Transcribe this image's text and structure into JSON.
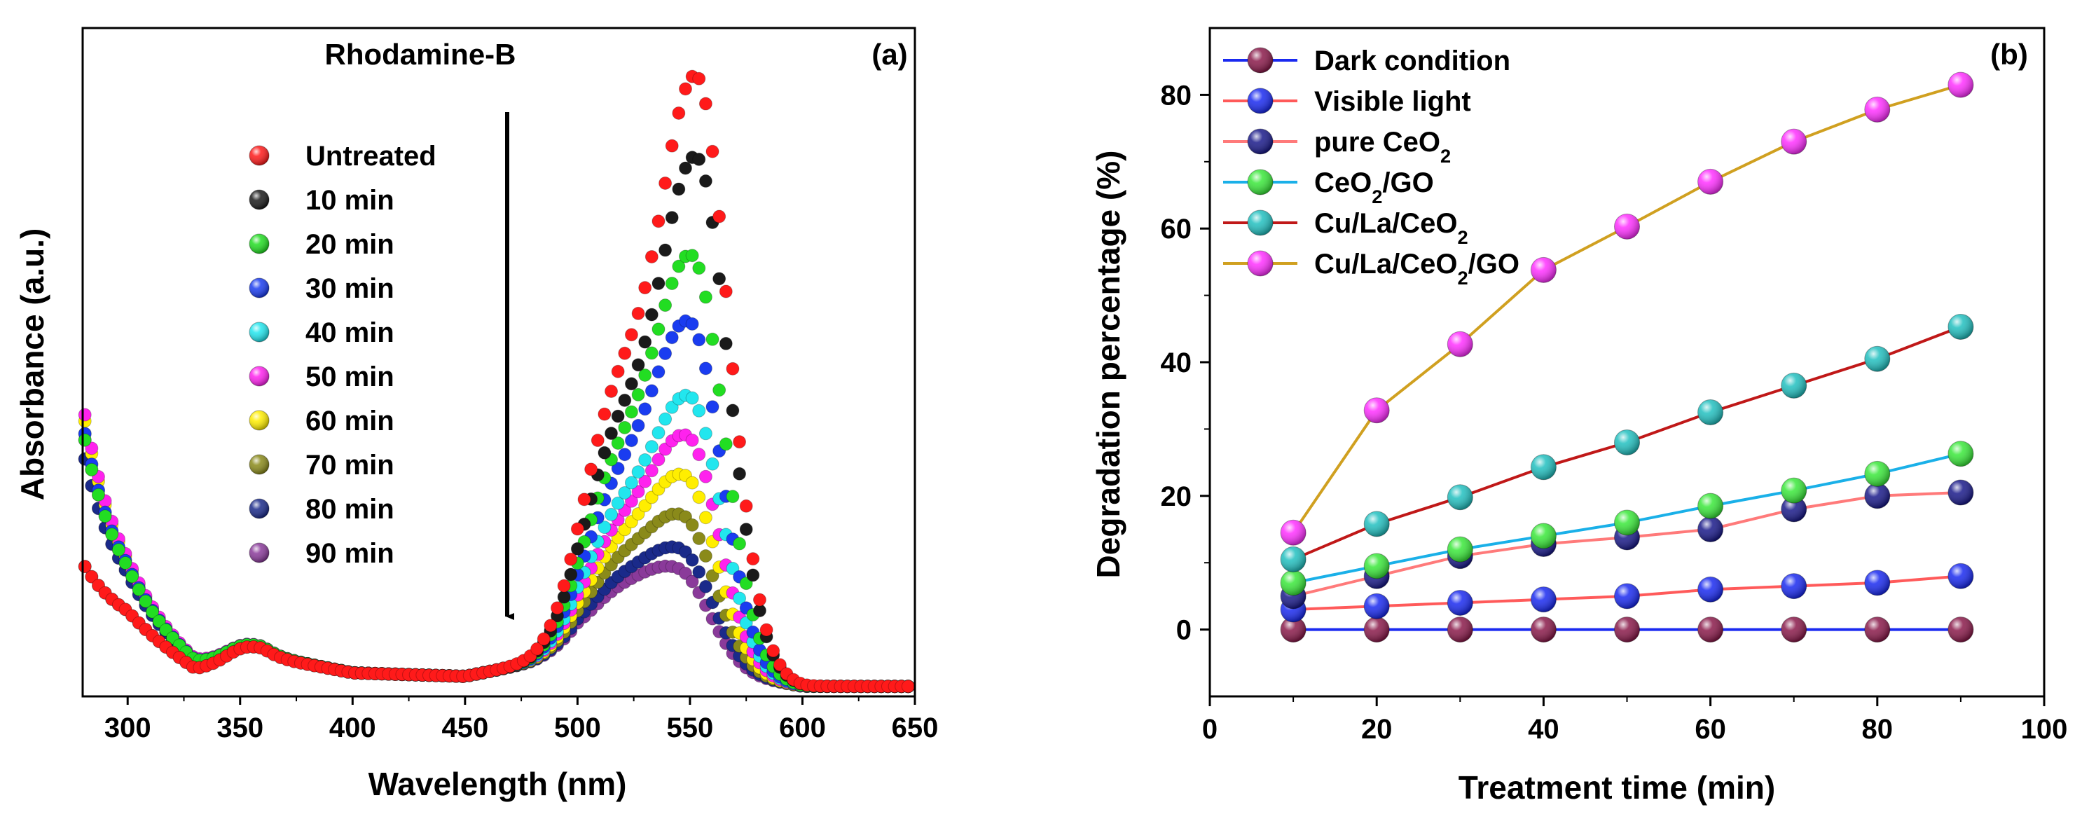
{
  "chart_data": [
    {
      "type": "scatter",
      "panel_label": "(a)",
      "title": "Rhodamine-B",
      "xlabel": "Wavelength (nm)",
      "ylabel": "Absorbance (a.u.)",
      "xlim": [
        280,
        650
      ],
      "ylim": [
        0,
        1.0
      ],
      "xticks": [
        300,
        350,
        400,
        450,
        500,
        550,
        600,
        650
      ],
      "yticks": [],
      "legend_position": "upper-left",
      "annotation": "arrow pointing down at ~470 nm indicating decreasing absorbance with time",
      "baseline_points": [
        [
          280,
          0.1
        ],
        [
          300,
          0.095
        ],
        [
          330,
          0.035
        ],
        [
          360,
          0.06
        ],
        [
          400,
          0.035
        ],
        [
          450,
          0.03
        ],
        [
          480,
          0.05
        ],
        [
          500,
          0.07
        ],
        [
          600,
          0.015
        ],
        [
          650,
          0.015
        ]
      ],
      "series": [
        {
          "name": "Untreated",
          "color": "#ff1a1a",
          "peak_x": 553,
          "peak": 0.88,
          "shoulder": 0.3,
          "tail_start": 0.1
        },
        {
          "name": "10 min",
          "color": "#1a1a1a",
          "peak_x": 553,
          "peak": 0.76,
          "shoulder": 0.25,
          "tail_start": 0.1
        },
        {
          "name": "20 min",
          "color": "#22dd22",
          "peak_x": 551,
          "peak": 0.61,
          "shoulder": 0.21,
          "tail_start": 0.3
        },
        {
          "name": "30 min",
          "color": "#1a3cf0",
          "peak_x": 550,
          "peak": 0.51,
          "shoulder": 0.18,
          "tail_start": 0.31
        },
        {
          "name": "40 min",
          "color": "#22e6ee",
          "peak_x": 550,
          "peak": 0.4,
          "shoulder": 0.15,
          "tail_start": 0.31
        },
        {
          "name": "50 min",
          "color": "#ff22ee",
          "peak_x": 549,
          "peak": 0.34,
          "shoulder": 0.13,
          "tail_start": 0.34
        },
        {
          "name": "60 min",
          "color": "#ffee00",
          "peak_x": 548,
          "peak": 0.28,
          "shoulder": 0.11,
          "tail_start": 0.33
        },
        {
          "name": "70 min",
          "color": "#8a8a1a",
          "peak_x": 547,
          "peak": 0.22,
          "shoulder": 0.09,
          "tail_start": 0.3
        },
        {
          "name": "80 min",
          "color": "#1a2a8a",
          "peak_x": 546,
          "peak": 0.17,
          "shoulder": 0.07,
          "tail_start": 0.27
        },
        {
          "name": "90 min",
          "color": "#8a3a9a",
          "peak_x": 545,
          "peak": 0.14,
          "shoulder": 0.06,
          "tail_start": 0.27
        }
      ]
    },
    {
      "type": "line",
      "panel_label": "(b)",
      "xlabel": "Treatment time (min)",
      "ylabel": "Degradation percentage (%)",
      "xlim": [
        0,
        100
      ],
      "ylim": [
        -10,
        90
      ],
      "xticks": [
        0,
        20,
        40,
        60,
        80,
        100
      ],
      "yticks": [
        0,
        20,
        40,
        60,
        80
      ],
      "legend_position": "upper-left",
      "x": [
        10,
        20,
        30,
        40,
        50,
        60,
        70,
        80,
        90
      ],
      "series": [
        {
          "name": "Dark condition",
          "line_color": "#1a2af0",
          "marker_color": "#8a1a4a",
          "values": [
            0,
            0,
            0,
            0,
            0,
            0,
            0,
            0,
            0
          ]
        },
        {
          "name": "Visible light",
          "line_color": "#ff5a5a",
          "marker_color": "#1a2af0",
          "values": [
            3,
            3.5,
            4,
            4.5,
            5,
            6,
            6.5,
            7,
            8
          ]
        },
        {
          "name": "pure CeO2",
          "line_color": "#ff7a7a",
          "marker_color": "#1a1a8a",
          "values": [
            5,
            8,
            11,
            12.8,
            13.8,
            15,
            18,
            20,
            20.5
          ]
        },
        {
          "name": "CeO2/GO",
          "line_color": "#1ab0e8",
          "marker_color": "#3ae83a",
          "values": [
            7,
            9.5,
            12,
            14,
            16,
            18.5,
            20.8,
            23.3,
            26.3
          ]
        },
        {
          "name": "Cu/La/CeO2",
          "line_color": "#c01818",
          "marker_color": "#22c0c0",
          "values": [
            10.5,
            15.8,
            19.8,
            24.3,
            28,
            32.5,
            36.5,
            40.5,
            45.3
          ]
        },
        {
          "name": "Cu/La/CeO2/GO",
          "line_color": "#d0a020",
          "marker_color": "#ff30ff",
          "values": [
            14.5,
            32.8,
            42.7,
            53.8,
            60.3,
            67,
            73,
            77.8,
            81.5
          ]
        }
      ]
    }
  ]
}
